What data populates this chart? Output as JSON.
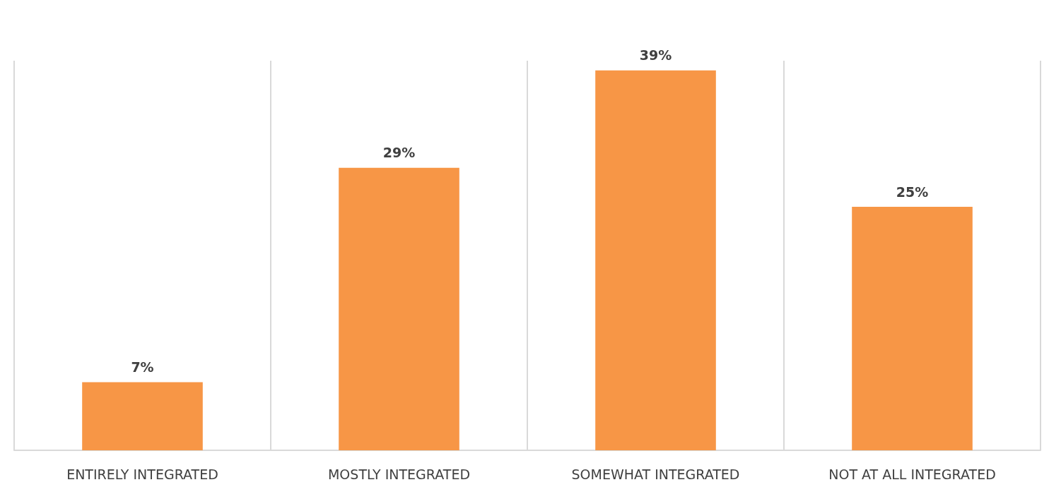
{
  "chart_data": {
    "type": "bar",
    "categories": [
      "ENTIRELY INTEGRATED",
      "MOSTLY INTEGRATED",
      "SOMEWHAT INTEGRATED",
      "NOT AT ALL INTEGRATED"
    ],
    "values": [
      7,
      29,
      39,
      25
    ],
    "value_labels": [
      "7%",
      "29%",
      "39%",
      "25%"
    ],
    "color": "#f79646",
    "grid": "x"
  }
}
